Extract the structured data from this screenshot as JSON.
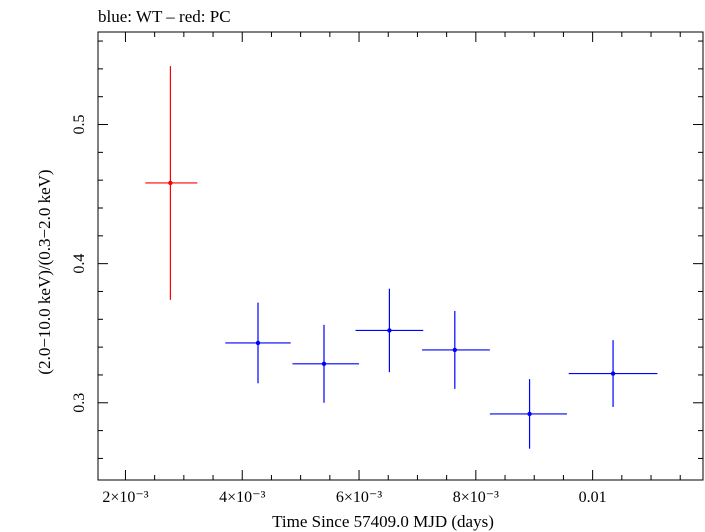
{
  "chart_data": {
    "type": "scatter",
    "title": "blue: WT – red: PC",
    "xlabel": "Time Since 57409.0 MJD (days)",
    "ylabel": "(2.0−10.0 keV)/(0.3−2.0 keV)",
    "xlim": [
      0.00153,
      0.01189
    ],
    "ylim": [
      0.2445,
      0.5665
    ],
    "x_ticks": [
      {
        "value": 0.002,
        "label": "2×10⁻³"
      },
      {
        "value": 0.004,
        "label": "4×10⁻³"
      },
      {
        "value": 0.006,
        "label": "6×10⁻³"
      },
      {
        "value": 0.008,
        "label": "8×10⁻³"
      },
      {
        "value": 0.01,
        "label": "0.01"
      }
    ],
    "y_ticks": [
      {
        "value": 0.3,
        "label": "0.3"
      },
      {
        "value": 0.4,
        "label": "0.4"
      },
      {
        "value": 0.5,
        "label": "0.5"
      }
    ],
    "series": [
      {
        "color": "#ff0000",
        "points": [
          {
            "x": 0.00277,
            "xerr_lo": 0.00043,
            "xerr_hi": 0.00046,
            "y": 0.458,
            "yerr_lo": 0.084,
            "yerr_hi": 0.084
          }
        ]
      },
      {
        "color": "#0000ff",
        "points": [
          {
            "x": 0.00427,
            "xerr_lo": 0.00056,
            "xerr_hi": 0.00056,
            "y": 0.343,
            "yerr_lo": 0.029,
            "yerr_hi": 0.029
          },
          {
            "x": 0.0054,
            "xerr_lo": 0.00054,
            "xerr_hi": 0.0006,
            "y": 0.328,
            "yerr_lo": 0.028,
            "yerr_hi": 0.028
          },
          {
            "x": 0.00652,
            "xerr_lo": 0.00058,
            "xerr_hi": 0.00058,
            "y": 0.352,
            "yerr_lo": 0.03,
            "yerr_hi": 0.03
          },
          {
            "x": 0.00764,
            "xerr_lo": 0.00056,
            "xerr_hi": 0.0006,
            "y": 0.338,
            "yerr_lo": 0.028,
            "yerr_hi": 0.028
          },
          {
            "x": 0.00892,
            "xerr_lo": 0.00068,
            "xerr_hi": 0.00064,
            "y": 0.292,
            "yerr_lo": 0.025,
            "yerr_hi": 0.025
          },
          {
            "x": 0.01035,
            "xerr_lo": 0.00076,
            "xerr_hi": 0.00076,
            "y": 0.321,
            "yerr_lo": 0.024,
            "yerr_hi": 0.024
          }
        ]
      }
    ]
  }
}
